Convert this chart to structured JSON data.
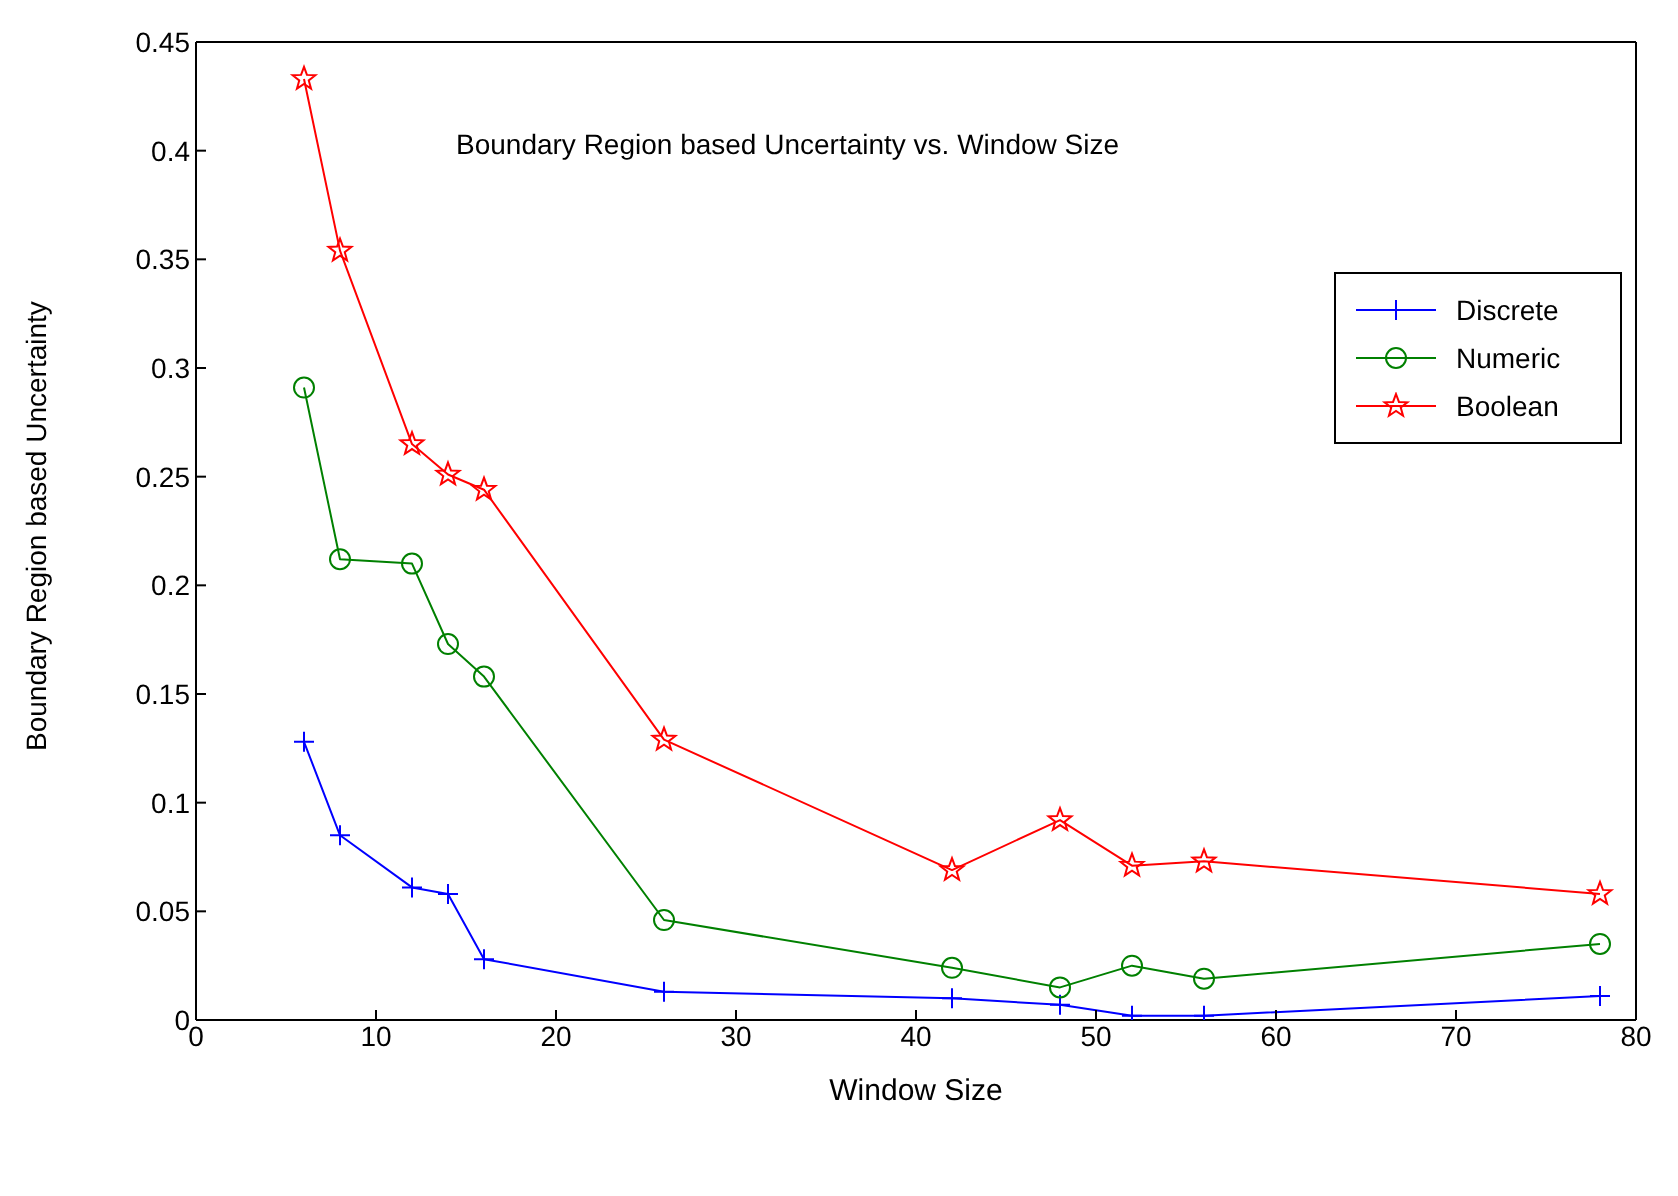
{
  "chart_data": {
    "type": "line",
    "title": "Boundary Region based Uncertainty vs. Window Size",
    "xlabel": "Window Size",
    "ylabel": "Boundary Region based Uncertainty",
    "x": [
      6,
      8,
      12,
      14,
      16,
      26,
      42,
      48,
      52,
      56,
      78
    ],
    "series": [
      {
        "name": "Discrete",
        "color": "#0000ff",
        "marker": "cross",
        "values": [
          0.128,
          0.085,
          0.061,
          0.058,
          0.028,
          0.013,
          0.01,
          0.007,
          0.002,
          0.002,
          0.011
        ]
      },
      {
        "name": "Numeric",
        "color": "#008000",
        "marker": "circle",
        "values": [
          0.291,
          0.212,
          0.21,
          0.173,
          0.158,
          0.046,
          0.024,
          0.015,
          0.025,
          0.019,
          0.035
        ]
      },
      {
        "name": "Boolean",
        "color": "#ff0000",
        "marker": "star",
        "values": [
          0.433,
          0.354,
          0.265,
          0.251,
          0.244,
          0.129,
          0.069,
          0.092,
          0.071,
          0.073,
          0.058
        ]
      }
    ],
    "xlim": [
      0,
      80
    ],
    "xticks": [
      0,
      10,
      20,
      30,
      40,
      50,
      60,
      70,
      80
    ],
    "ylim": [
      0,
      0.45
    ],
    "yticks": [
      0,
      0.05,
      0.1,
      0.15,
      0.2,
      0.25,
      0.3,
      0.35,
      0.4,
      0.45
    ],
    "grid": false,
    "legend": "top right",
    "line_style": "solid"
  }
}
